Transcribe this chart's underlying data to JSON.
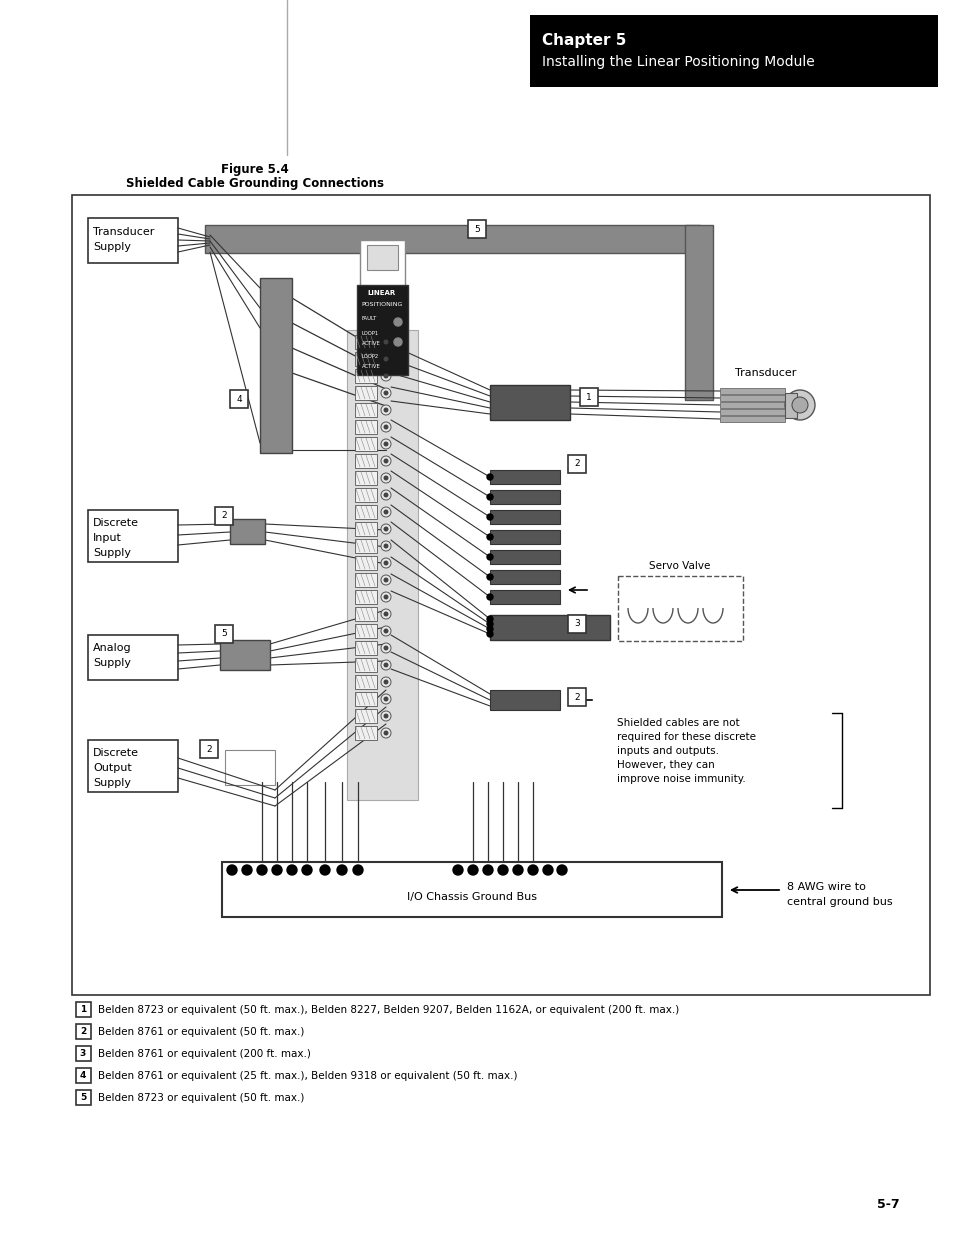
{
  "page_bg": "#ffffff",
  "header_box_color": "#000000",
  "header_text1": "Chapter 5",
  "header_text2": "Installing the Linear Positioning Module",
  "header_text_color": "#ffffff",
  "figure_title1": "Figure 5.4",
  "figure_title2": "Shielded Cable Grounding Connections",
  "page_number": "5-7",
  "footnotes": [
    "Belden 8723 or equivalent (50 ft. max.), Belden 8227, Belden 9207, Belden 1162A, or equivalent (200 ft. max.)",
    "Belden 8761 or equivalent (50 ft. max.)",
    "Belden 8761 or equivalent (200 ft. max.)",
    "Belden 8761 or equivalent (25 ft. max.), Belden 9318 or equivalent (50 ft. max.)",
    "Belden 8723 or equivalent (50 ft. max.)"
  ],
  "footnote_labels": [
    "1",
    "2",
    "3",
    "4",
    "5"
  ],
  "gray_cable": "#7a7a7a",
  "gray_connector": "#888888",
  "gray_dark": "#555555",
  "wire_color": "#000000",
  "module_bg": "#222222"
}
